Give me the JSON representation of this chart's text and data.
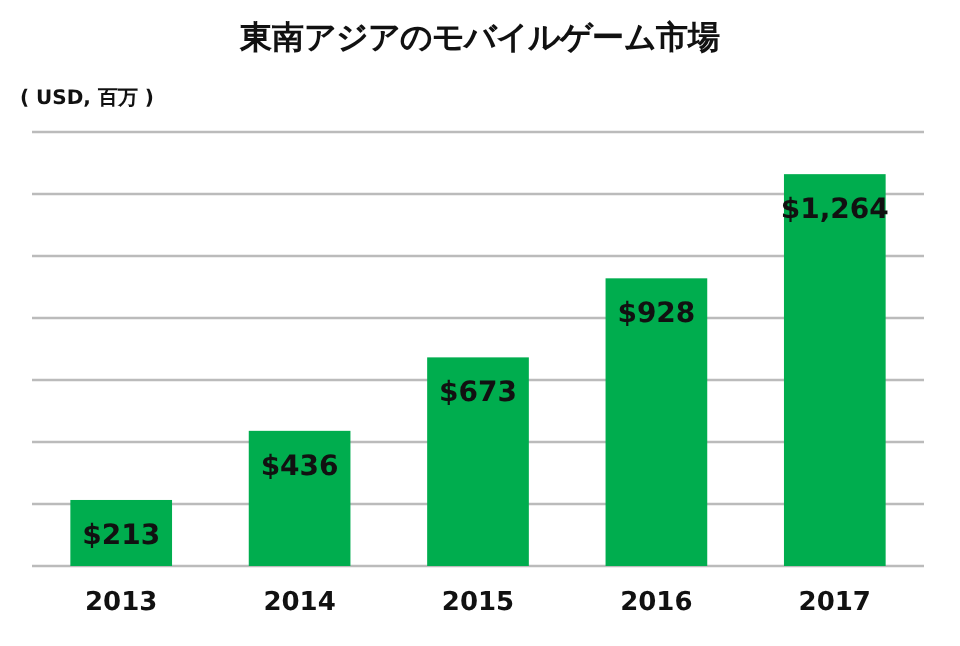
{
  "chart_data": {
    "type": "bar",
    "title": "東南アジアのモバイルゲーム市場",
    "ylabel": "( USD, 百万 )",
    "categories": [
      "2013",
      "2014",
      "2015",
      "2016",
      "2017"
    ],
    "values": [
      213,
      436,
      673,
      928,
      1264
    ],
    "value_labels": [
      "$213",
      "$436",
      "$673",
      "$928",
      "$1,264"
    ],
    "color": "#00ad4e",
    "ylim": [
      0,
      1400
    ],
    "yticks": [
      {
        "value": 0,
        "label": null
      },
      {
        "value": 200,
        "label": null
      },
      {
        "value": 400,
        "label": null
      },
      {
        "value": 600,
        "label": null
      },
      {
        "value": 800,
        "label": null
      },
      {
        "value": 1000,
        "label": null
      },
      {
        "value": 1200,
        "label": null
      },
      {
        "value": 1400,
        "label": null
      }
    ],
    "grid": "y",
    "tick_labels": "x"
  }
}
